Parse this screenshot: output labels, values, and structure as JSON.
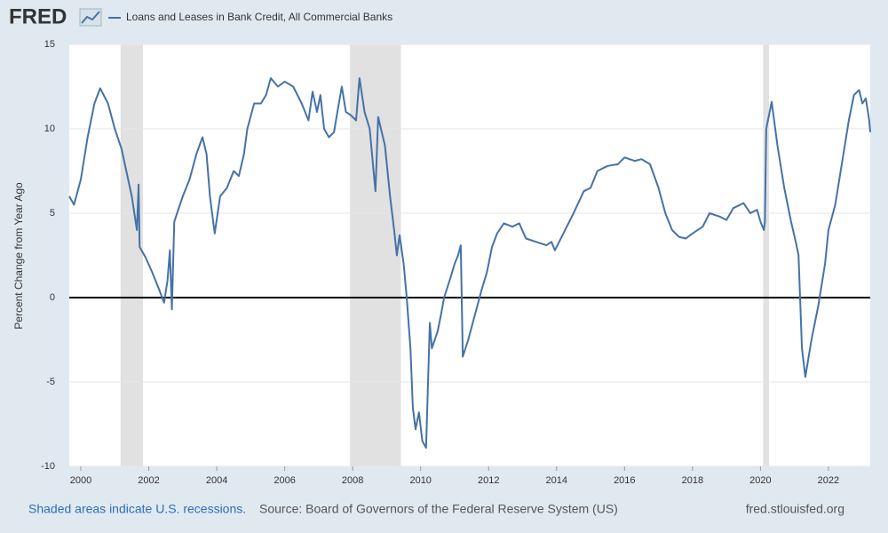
{
  "chart_data": {
    "type": "line",
    "logo": "FRED",
    "title": "Loans and Leases in Bank Credit, All Commercial Banks",
    "ylabel": "Percent Change from Year Ago",
    "note": "Shaded areas indicate U.S. recessions.",
    "source": "Source: Board of Governors of the Federal Reserve System (US)",
    "site": "fred.stlouisfed.org",
    "xlim": [
      1999.66,
      2023.23
    ],
    "ylim": [
      -10,
      15
    ],
    "xticks": [
      2000,
      2002,
      2004,
      2006,
      2008,
      2010,
      2012,
      2014,
      2016,
      2018,
      2020,
      2022
    ],
    "yticks": [
      -10,
      -5,
      0,
      5,
      10,
      15
    ],
    "grid": true,
    "recessions": [
      {
        "start": 2001.17,
        "end": 2001.83
      },
      {
        "start": 2007.92,
        "end": 2009.42
      },
      {
        "start": 2020.08,
        "end": 2020.25
      }
    ],
    "x": [
      1999.66,
      1999.8,
      2000.0,
      2000.2,
      2000.4,
      2000.57,
      2000.8,
      2001.0,
      2001.2,
      2001.5,
      2001.65,
      2001.7,
      2001.73,
      2001.9,
      2002.1,
      2002.3,
      2002.45,
      2002.55,
      2002.62,
      2002.68,
      2002.75,
      2003.0,
      2003.2,
      2003.4,
      2003.58,
      2003.7,
      2003.8,
      2003.94,
      2004.1,
      2004.3,
      2004.5,
      2004.65,
      2004.8,
      2004.9,
      2005.1,
      2005.3,
      2005.45,
      2005.59,
      2005.8,
      2006.0,
      2006.25,
      2006.5,
      2006.7,
      2006.82,
      2006.95,
      2007.05,
      2007.16,
      2007.3,
      2007.45,
      2007.55,
      2007.68,
      2007.8,
      2007.95,
      2008.1,
      2008.2,
      2008.35,
      2008.5,
      2008.67,
      2008.75,
      2008.95,
      2009.1,
      2009.22,
      2009.3,
      2009.38,
      2009.5,
      2009.59,
      2009.7,
      2009.77,
      2009.85,
      2009.95,
      2010.05,
      2010.16,
      2010.27,
      2010.33,
      2010.5,
      2010.6,
      2010.69,
      2010.85,
      2011.0,
      2011.1,
      2011.18,
      2011.24,
      2011.4,
      2011.6,
      2011.8,
      2011.95,
      2012.1,
      2012.25,
      2012.45,
      2012.7,
      2012.9,
      2013.1,
      2013.4,
      2013.7,
      2013.85,
      2013.95,
      2014.2,
      2014.5,
      2014.8,
      2015.0,
      2015.2,
      2015.5,
      2015.8,
      2016.0,
      2016.3,
      2016.5,
      2016.75,
      2017.0,
      2017.2,
      2017.4,
      2017.6,
      2017.8,
      2018.0,
      2018.3,
      2018.5,
      2018.8,
      2019.0,
      2019.2,
      2019.5,
      2019.7,
      2019.9,
      2020.0,
      2020.1,
      2020.13,
      2020.17,
      2020.33,
      2020.5,
      2020.7,
      2020.9,
      2021.05,
      2021.12,
      2021.22,
      2021.32,
      2021.5,
      2021.7,
      2021.9,
      2022.0,
      2022.2,
      2022.4,
      2022.6,
      2022.75,
      2022.9,
      2023.0,
      2023.1,
      2023.2,
      2023.23
    ],
    "series": [
      {
        "name": "Loans and Leases in Bank Credit, All Commercial Banks",
        "color": "#4572a7",
        "values": [
          6.0,
          5.5,
          7.0,
          9.5,
          11.5,
          12.4,
          11.5,
          10.0,
          8.8,
          6.0,
          4.0,
          6.7,
          3.0,
          2.4,
          1.5,
          0.5,
          -0.3,
          1.0,
          2.8,
          -0.7,
          4.5,
          6.0,
          7.0,
          8.5,
          9.5,
          8.5,
          6.0,
          3.8,
          6.0,
          6.5,
          7.5,
          7.2,
          8.5,
          10.0,
          11.5,
          11.5,
          12.0,
          13.0,
          12.5,
          12.8,
          12.5,
          11.5,
          10.5,
          12.2,
          11.0,
          12.0,
          10.0,
          9.5,
          9.8,
          11.0,
          12.5,
          11.0,
          10.8,
          10.5,
          13.0,
          11.0,
          10.0,
          6.3,
          10.7,
          9.0,
          6.0,
          4.0,
          2.5,
          3.7,
          2.0,
          0.0,
          -3.0,
          -6.5,
          -7.8,
          -6.8,
          -8.5,
          -8.9,
          -1.5,
          -3.0,
          -2.0,
          -1.0,
          0.0,
          1.0,
          2.0,
          2.5,
          3.1,
          -3.5,
          -2.5,
          -1.0,
          0.5,
          1.5,
          3.0,
          3.8,
          4.4,
          4.2,
          4.4,
          3.5,
          3.3,
          3.1,
          3.3,
          2.8,
          3.8,
          5.0,
          6.3,
          6.5,
          7.5,
          7.8,
          7.9,
          8.3,
          8.1,
          8.2,
          7.9,
          6.5,
          5.0,
          4.0,
          3.6,
          3.5,
          3.8,
          4.2,
          5.0,
          4.8,
          4.6,
          5.3,
          5.6,
          5.0,
          5.2,
          4.5,
          4.0,
          4.5,
          10.0,
          11.6,
          9.0,
          6.5,
          4.5,
          3.2,
          2.5,
          -3.0,
          -4.7,
          -2.5,
          -0.5,
          2.0,
          4.0,
          5.5,
          8.0,
          10.5,
          12.0,
          12.3,
          11.5,
          11.8,
          10.5,
          9.8
        ]
      }
    ]
  }
}
